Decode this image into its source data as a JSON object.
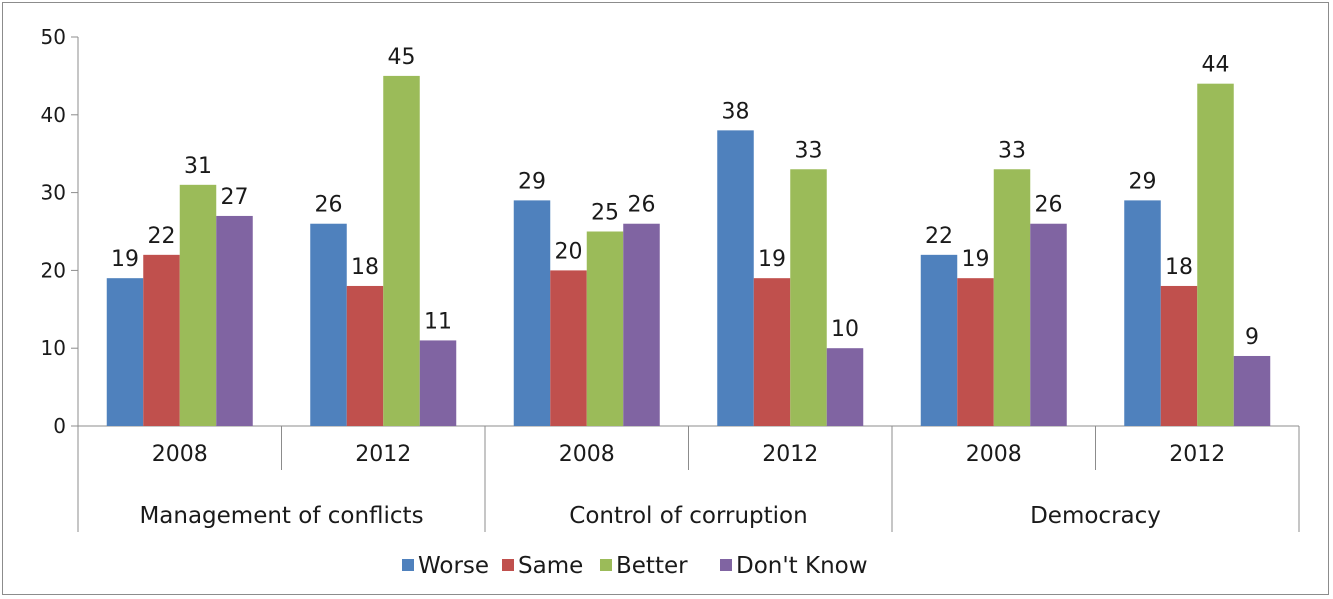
{
  "chart_data": {
    "type": "bar",
    "groups": [
      {
        "label": "Management of conflicts",
        "categories": [
          "2008",
          "2012"
        ]
      },
      {
        "label": "Control of corruption",
        "categories": [
          "2008",
          "2012"
        ]
      },
      {
        "label": "Democracy",
        "categories": [
          "2008",
          "2012"
        ]
      }
    ],
    "categories": [
      "2008",
      "2012",
      "2008",
      "2012",
      "2008",
      "2012"
    ],
    "series": [
      {
        "name": "Worse",
        "color": "#4f81bd",
        "values": [
          19,
          26,
          29,
          38,
          22,
          29
        ]
      },
      {
        "name": "Same",
        "color": "#c0504d",
        "values": [
          22,
          18,
          20,
          19,
          19,
          18
        ]
      },
      {
        "name": "Better",
        "color": "#9bbb59",
        "values": [
          31,
          45,
          25,
          33,
          33,
          44
        ]
      },
      {
        "name": "Don't Know",
        "color": "#8064a2",
        "values": [
          27,
          11,
          26,
          10,
          26,
          9
        ]
      }
    ],
    "ylim": [
      0,
      50
    ],
    "yticks": [
      "0",
      "10",
      "20",
      "30",
      "40",
      "50"
    ],
    "grid": false,
    "legend_position": "bottom",
    "data_labels": true
  }
}
